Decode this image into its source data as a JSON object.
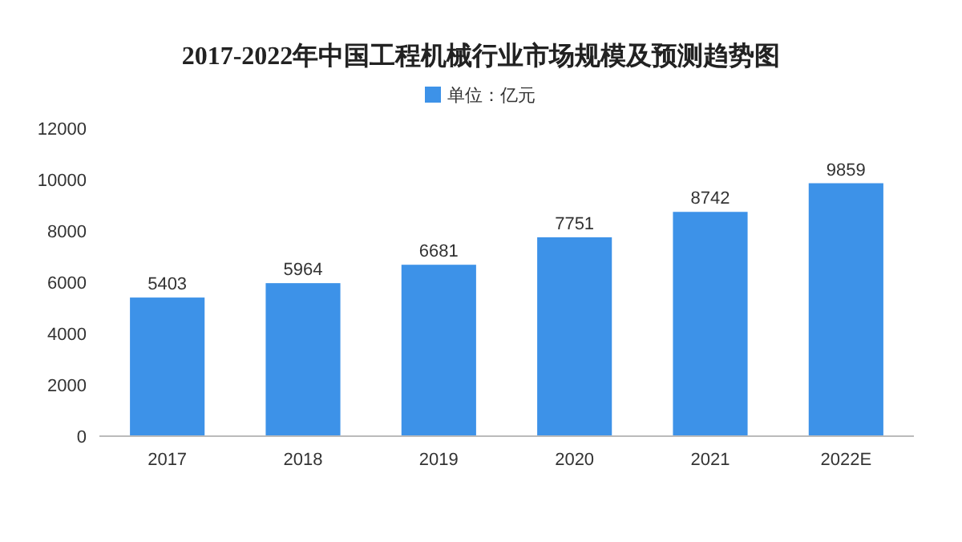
{
  "chart_data": {
    "type": "bar",
    "title": "2017-2022年中国工程机械行业市场规模及预测趋势图",
    "categories": [
      "2017",
      "2018",
      "2019",
      "2020",
      "2021",
      "2022E"
    ],
    "series": [
      {
        "name": "单位：亿元",
        "color": "#3d92e8",
        "values": [
          5403,
          5964,
          6681,
          7751,
          8742,
          9859
        ]
      }
    ],
    "ylim": [
      0,
      12000
    ],
    "yticks": [
      0,
      2000,
      4000,
      6000,
      8000,
      10000,
      12000
    ],
    "data_labels": true,
    "legend": "top"
  }
}
